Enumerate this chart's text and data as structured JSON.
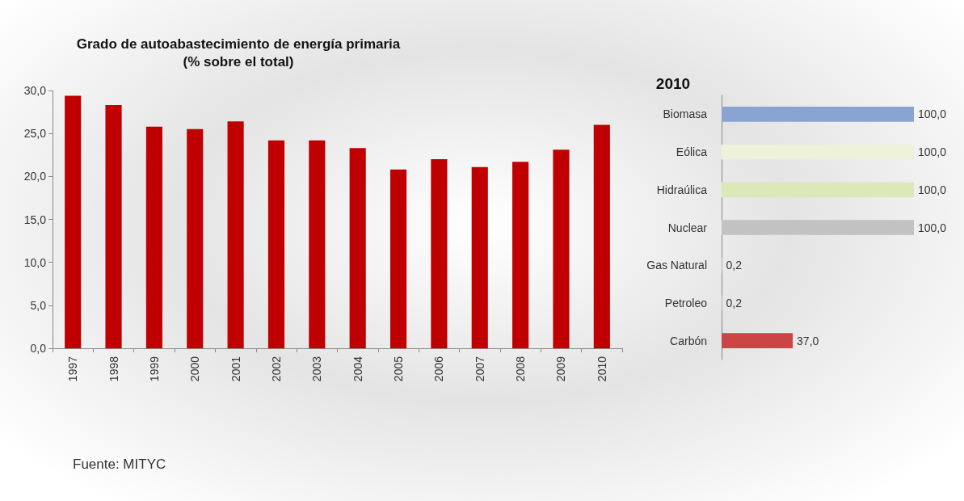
{
  "chart_data": [
    {
      "type": "bar",
      "title": "Grado de autoabastecimiento de energía primaria\n(% sobre el total)",
      "categories": [
        "1997",
        "1998",
        "1999",
        "2000",
        "2001",
        "2002",
        "2003",
        "2004",
        "2005",
        "2006",
        "2007",
        "2008",
        "2009",
        "2010"
      ],
      "values": [
        29.4,
        28.3,
        25.8,
        25.5,
        26.4,
        24.2,
        24.2,
        23.3,
        20.8,
        22.0,
        21.1,
        21.7,
        23.1,
        26.0
      ],
      "color": "#c00000",
      "ylim": [
        0,
        30
      ],
      "yticks": [
        {
          "value": 0,
          "label": "0,0"
        },
        {
          "value": 5,
          "label": "5,0"
        },
        {
          "value": 10,
          "label": "10,0"
        },
        {
          "value": 15,
          "label": "15,0"
        },
        {
          "value": 20,
          "label": "20,0"
        },
        {
          "value": 25,
          "label": "25,0"
        },
        {
          "value": 30,
          "label": "30,0"
        }
      ],
      "annotations": [
        "Fuente: MITYC"
      ]
    },
    {
      "type": "bar",
      "orientation": "horizontal",
      "title": "2010",
      "categories": [
        "Biomasa",
        "Eólica",
        "Hidraúlica",
        "Nuclear",
        "Gas Natural",
        "Petroleo",
        "Carbón"
      ],
      "values": [
        100,
        100,
        100,
        100,
        0.2,
        0.2,
        37
      ],
      "colors": [
        "#8aa4d2",
        "#eef2da",
        "#dde8b8",
        "#c2c2c2",
        "#d9d9d9",
        "#d9d9d9",
        "#cc4444"
      ],
      "value_labels": [
        "100,0",
        "100,0",
        "100,0",
        "100,0",
        "0,2",
        "0,2",
        "37,0"
      ],
      "tick_labels": "y"
    }
  ]
}
